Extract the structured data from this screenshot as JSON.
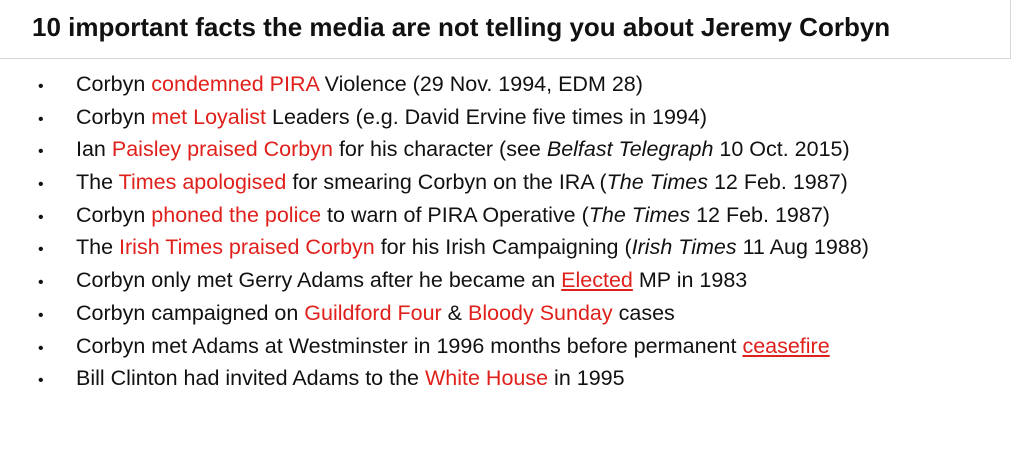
{
  "slide": {
    "title": "10 important facts the media are not telling you about Jeremy Corbyn",
    "bullet_glyph": "•",
    "colors": {
      "highlight": "#e0201b",
      "text": "#111111"
    },
    "facts": [
      {
        "segments": [
          {
            "text": "Corbyn ",
            "style": "normal"
          },
          {
            "text": "condemned PIRA",
            "style": "highlight"
          },
          {
            "text": " Violence (29 Nov. 1994, EDM 28)",
            "style": "normal"
          }
        ]
      },
      {
        "segments": [
          {
            "text": "Corbyn ",
            "style": "normal"
          },
          {
            "text": "met Loyalist",
            "style": "highlight"
          },
          {
            "text": " Leaders (e.g. David Ervine five times in 1994)",
            "style": "normal"
          }
        ]
      },
      {
        "segments": [
          {
            "text": "Ian ",
            "style": "normal"
          },
          {
            "text": "Paisley praised Corbyn",
            "style": "highlight"
          },
          {
            "text": " for his character (see ",
            "style": "normal"
          },
          {
            "text": "Belfast Telegraph",
            "style": "italic"
          },
          {
            "text": " 10 Oct. 2015)",
            "style": "normal"
          }
        ]
      },
      {
        "segments": [
          {
            "text": "The ",
            "style": "normal"
          },
          {
            "text": "Times apologised",
            "style": "highlight"
          },
          {
            "text": " for smearing Corbyn on the IRA (",
            "style": "normal"
          },
          {
            "text": "The Times",
            "style": "italic"
          },
          {
            "text": " 12 Feb. 1987)",
            "style": "normal"
          }
        ]
      },
      {
        "segments": [
          {
            "text": "Corbyn ",
            "style": "normal"
          },
          {
            "text": "phoned the police",
            "style": "highlight"
          },
          {
            "text": " to warn of PIRA Operative (",
            "style": "normal"
          },
          {
            "text": "The Times",
            "style": "italic"
          },
          {
            "text": " 12 Feb. 1987)",
            "style": "normal"
          }
        ]
      },
      {
        "segments": [
          {
            "text": "The ",
            "style": "normal"
          },
          {
            "text": "Irish Times praised Corbyn",
            "style": "highlight"
          },
          {
            "text": " for his Irish Campaigning (",
            "style": "normal"
          },
          {
            "text": "Irish Times",
            "style": "italic"
          },
          {
            "text": " 11 Aug 1988)",
            "style": "normal"
          }
        ]
      },
      {
        "segments": [
          {
            "text": "Corbyn only met Gerry Adams after he became an ",
            "style": "normal"
          },
          {
            "text": "Elected",
            "style": "highlight-underline"
          },
          {
            "text": " MP in 1983",
            "style": "normal"
          }
        ]
      },
      {
        "segments": [
          {
            "text": "Corbyn campaigned on ",
            "style": "normal"
          },
          {
            "text": "Guildford Four",
            "style": "highlight"
          },
          {
            "text": " & ",
            "style": "normal"
          },
          {
            "text": "Bloody Sunday",
            "style": "highlight"
          },
          {
            "text": " cases",
            "style": "normal"
          }
        ]
      },
      {
        "segments": [
          {
            "text": "Corbyn met Adams at Westminster in 1996 months before permanent ",
            "style": "normal"
          },
          {
            "text": "ceasefire",
            "style": "highlight-underline"
          }
        ]
      },
      {
        "segments": [
          {
            "text": "Bill Clinton had invited Adams to the ",
            "style": "normal"
          },
          {
            "text": "White House",
            "style": "highlight"
          },
          {
            "text": " in 1995",
            "style": "normal"
          }
        ]
      }
    ]
  }
}
